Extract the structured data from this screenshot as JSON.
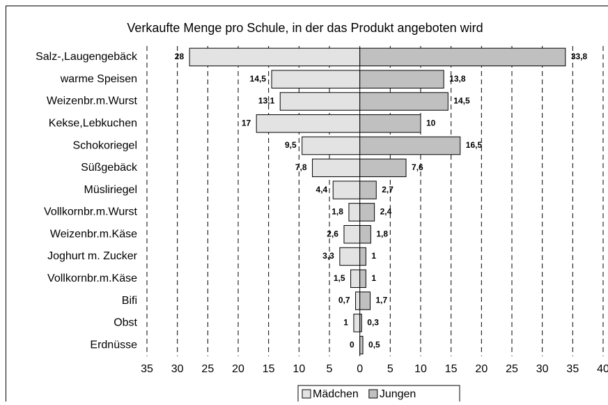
{
  "chart_data": {
    "type": "butterfly",
    "title": "Verkaufte Menge pro Schule, in der das Produkt angeboten wird",
    "categories": [
      "Salz-,Laugengebäck",
      "warme Speisen",
      "Weizenbr.m.Wurst",
      "Kekse,Lebkuchen",
      "Schokoriegel",
      "Süßgebäck",
      "Müsliriegel",
      "Vollkornbr.m.Wurst",
      "Weizenbr.m.Käse",
      "Joghurt m. Zucker",
      "Vollkornbr.m.Käse",
      "Bifi",
      "Obst",
      "Erdnüsse"
    ],
    "series": [
      {
        "name": "Mädchen",
        "color": "#e3e3e3",
        "side": "left",
        "values": [
          28,
          14.5,
          13.1,
          17,
          9.5,
          7.8,
          4.4,
          1.8,
          2.6,
          3.3,
          1.5,
          0.7,
          1,
          0
        ],
        "value_labels": [
          "28",
          "14,5",
          "13,1",
          "17",
          "9,5",
          "7,8",
          "4,4",
          "1,8",
          "2,6",
          "3,3",
          "1,5",
          "0,7",
          "1",
          "0"
        ]
      },
      {
        "name": "Jungen",
        "color": "#c0c0c0",
        "side": "right",
        "values": [
          33.8,
          13.8,
          14.5,
          10,
          16.5,
          7.6,
          2.7,
          2.4,
          1.8,
          1,
          1,
          1.7,
          0.3,
          0.5
        ],
        "value_labels": [
          "33,8",
          "13,8",
          "14,5",
          "10",
          "16,5",
          "7,6",
          "2,7",
          "2,4",
          "1,8",
          "1",
          "1",
          "1,7",
          "0,3",
          "0,5"
        ]
      }
    ],
    "xlim": [
      -35,
      40
    ],
    "xticks": [
      {
        "value": -35,
        "label": "35"
      },
      {
        "value": -30,
        "label": "30"
      },
      {
        "value": -25,
        "label": "25"
      },
      {
        "value": -20,
        "label": "20"
      },
      {
        "value": -15,
        "label": "15"
      },
      {
        "value": -10,
        "label": "10"
      },
      {
        "value": -5,
        "label": "5"
      },
      0,
      5,
      10,
      15,
      20,
      25,
      30,
      35,
      40
    ],
    "grid": true,
    "legend": "bottom"
  }
}
